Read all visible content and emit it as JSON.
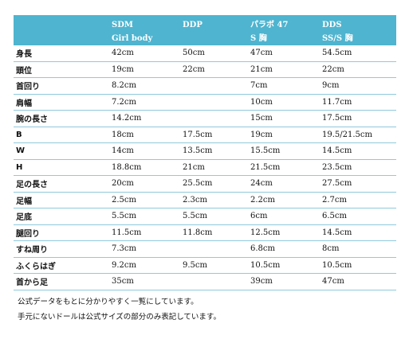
{
  "table": {
    "header": [
      [
        "",
        ""
      ],
      [
        "SDM",
        "Girl body"
      ],
      [
        "DDP",
        ""
      ],
      [
        "パラボ 47",
        "S 胸"
      ],
      [
        "DDS",
        "SS/S 胸"
      ]
    ],
    "rows": [
      [
        "身長",
        "42cm",
        "50cm",
        "47cm",
        "54.5cm"
      ],
      [
        "頭位",
        "19cm",
        "22cm",
        "21cm",
        "22cm"
      ],
      [
        "首回り",
        "8.2cm",
        "",
        "7cm",
        "9cm"
      ],
      [
        "肩幅",
        "7.2cm",
        "",
        "10cm",
        "11.7cm"
      ],
      [
        "腕の長さ",
        "14.2cm",
        "",
        "15cm",
        "17.5cm"
      ],
      [
        "B",
        "18cm",
        "17.5cm",
        "19cm",
        "19.5/21.5cm"
      ],
      [
        "W",
        "14cm",
        "13.5cm",
        "15.5cm",
        "14.5cm"
      ],
      [
        "H",
        "18.8cm",
        "21cm",
        "21.5cm",
        "23.5cm"
      ],
      [
        "足の長さ",
        "20cm",
        "25.5cm",
        "24cm",
        "27.5cm"
      ],
      [
        "足幅",
        "2.5cm",
        "2.3cm",
        "2.2cm",
        "2.7cm"
      ],
      [
        "足底",
        "5.5cm",
        "5.5cm",
        "6cm",
        "6.5cm"
      ],
      [
        "腿回り",
        "11.5cm",
        "11.8cm",
        "12.5cm",
        "14.5cm"
      ],
      [
        "すね周り",
        "7.3cm",
        "",
        "6.8cm",
        "8cm"
      ],
      [
        "ふくらはぎ",
        "9.2cm",
        "9.5cm",
        "10.5cm",
        "10.5cm"
      ],
      [
        "首から足",
        "35cm",
        "",
        "39cm",
        "47cm"
      ]
    ]
  },
  "notes": [
    "公式データをもとに分かりやすく一覧にしています。",
    "手元にないドールは公式サイズの部分のみ表記しています。"
  ],
  "colors": {
    "header_bg": "#4fb4cf",
    "header_text": "#ffffff",
    "row_divider": "#8fc9dc"
  }
}
